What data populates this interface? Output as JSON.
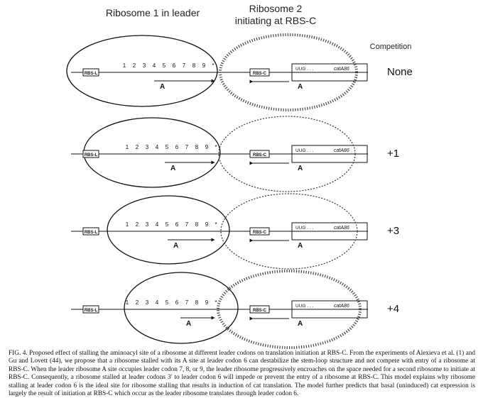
{
  "header": {
    "ribosome1_label": "Ribosome 1 in leader",
    "ribosome2_line1": "Ribosome 2",
    "ribosome2_line2": "initiating at RBS-C",
    "competition_label": "Competition"
  },
  "common": {
    "rbs_l": "RBS-L",
    "rbs_c": "RBS-C",
    "codons": [
      "1",
      "2",
      "3",
      "4",
      "5",
      "6",
      "7",
      "8",
      "9",
      "*"
    ],
    "uug": "UUG . . .",
    "gene": "catA86",
    "a_site": "A"
  },
  "panels": [
    {
      "competition": "None",
      "ribosome2_style": "hatched"
    },
    {
      "competition": "+1",
      "ribosome2_style": "dashed"
    },
    {
      "competition": "+3",
      "ribosome2_style": "dashed"
    },
    {
      "competition": "+4",
      "ribosome2_style": "hatched"
    }
  ],
  "caption": "FIG. 4. Proposed effect of stalling the aminoacyl site of a ribosome at different leader codons on translation initiation at RBS-C. From the experiments of Alexieva et al. (1) and Gu and Lovett (44), we propose that a ribosome stalled with its A site at leader codon 6 can destabilize the stem-loop structure and not compete with entry of a ribosome at RBS-C. When the leader ribosome A site occupies leader codon 7, 8, or 9, the leader ribosome progressively encroaches on the space needed for a second ribosome to initiate at RBS-C. Consequently, a ribosome stalled at leader codons 3′ to leader codon 6 will impede or prevent the entry of a ribosome at RBS-C. This model explains why ribosome stalling at leader codon 6 is the ideal site for ribosome stalling that results in induction of cat translation. The model further predicts that basal (uninduced) cat expression is largely the result of initiation at RBS-C which occur as the leader ribosome translates through leader codon 6."
}
